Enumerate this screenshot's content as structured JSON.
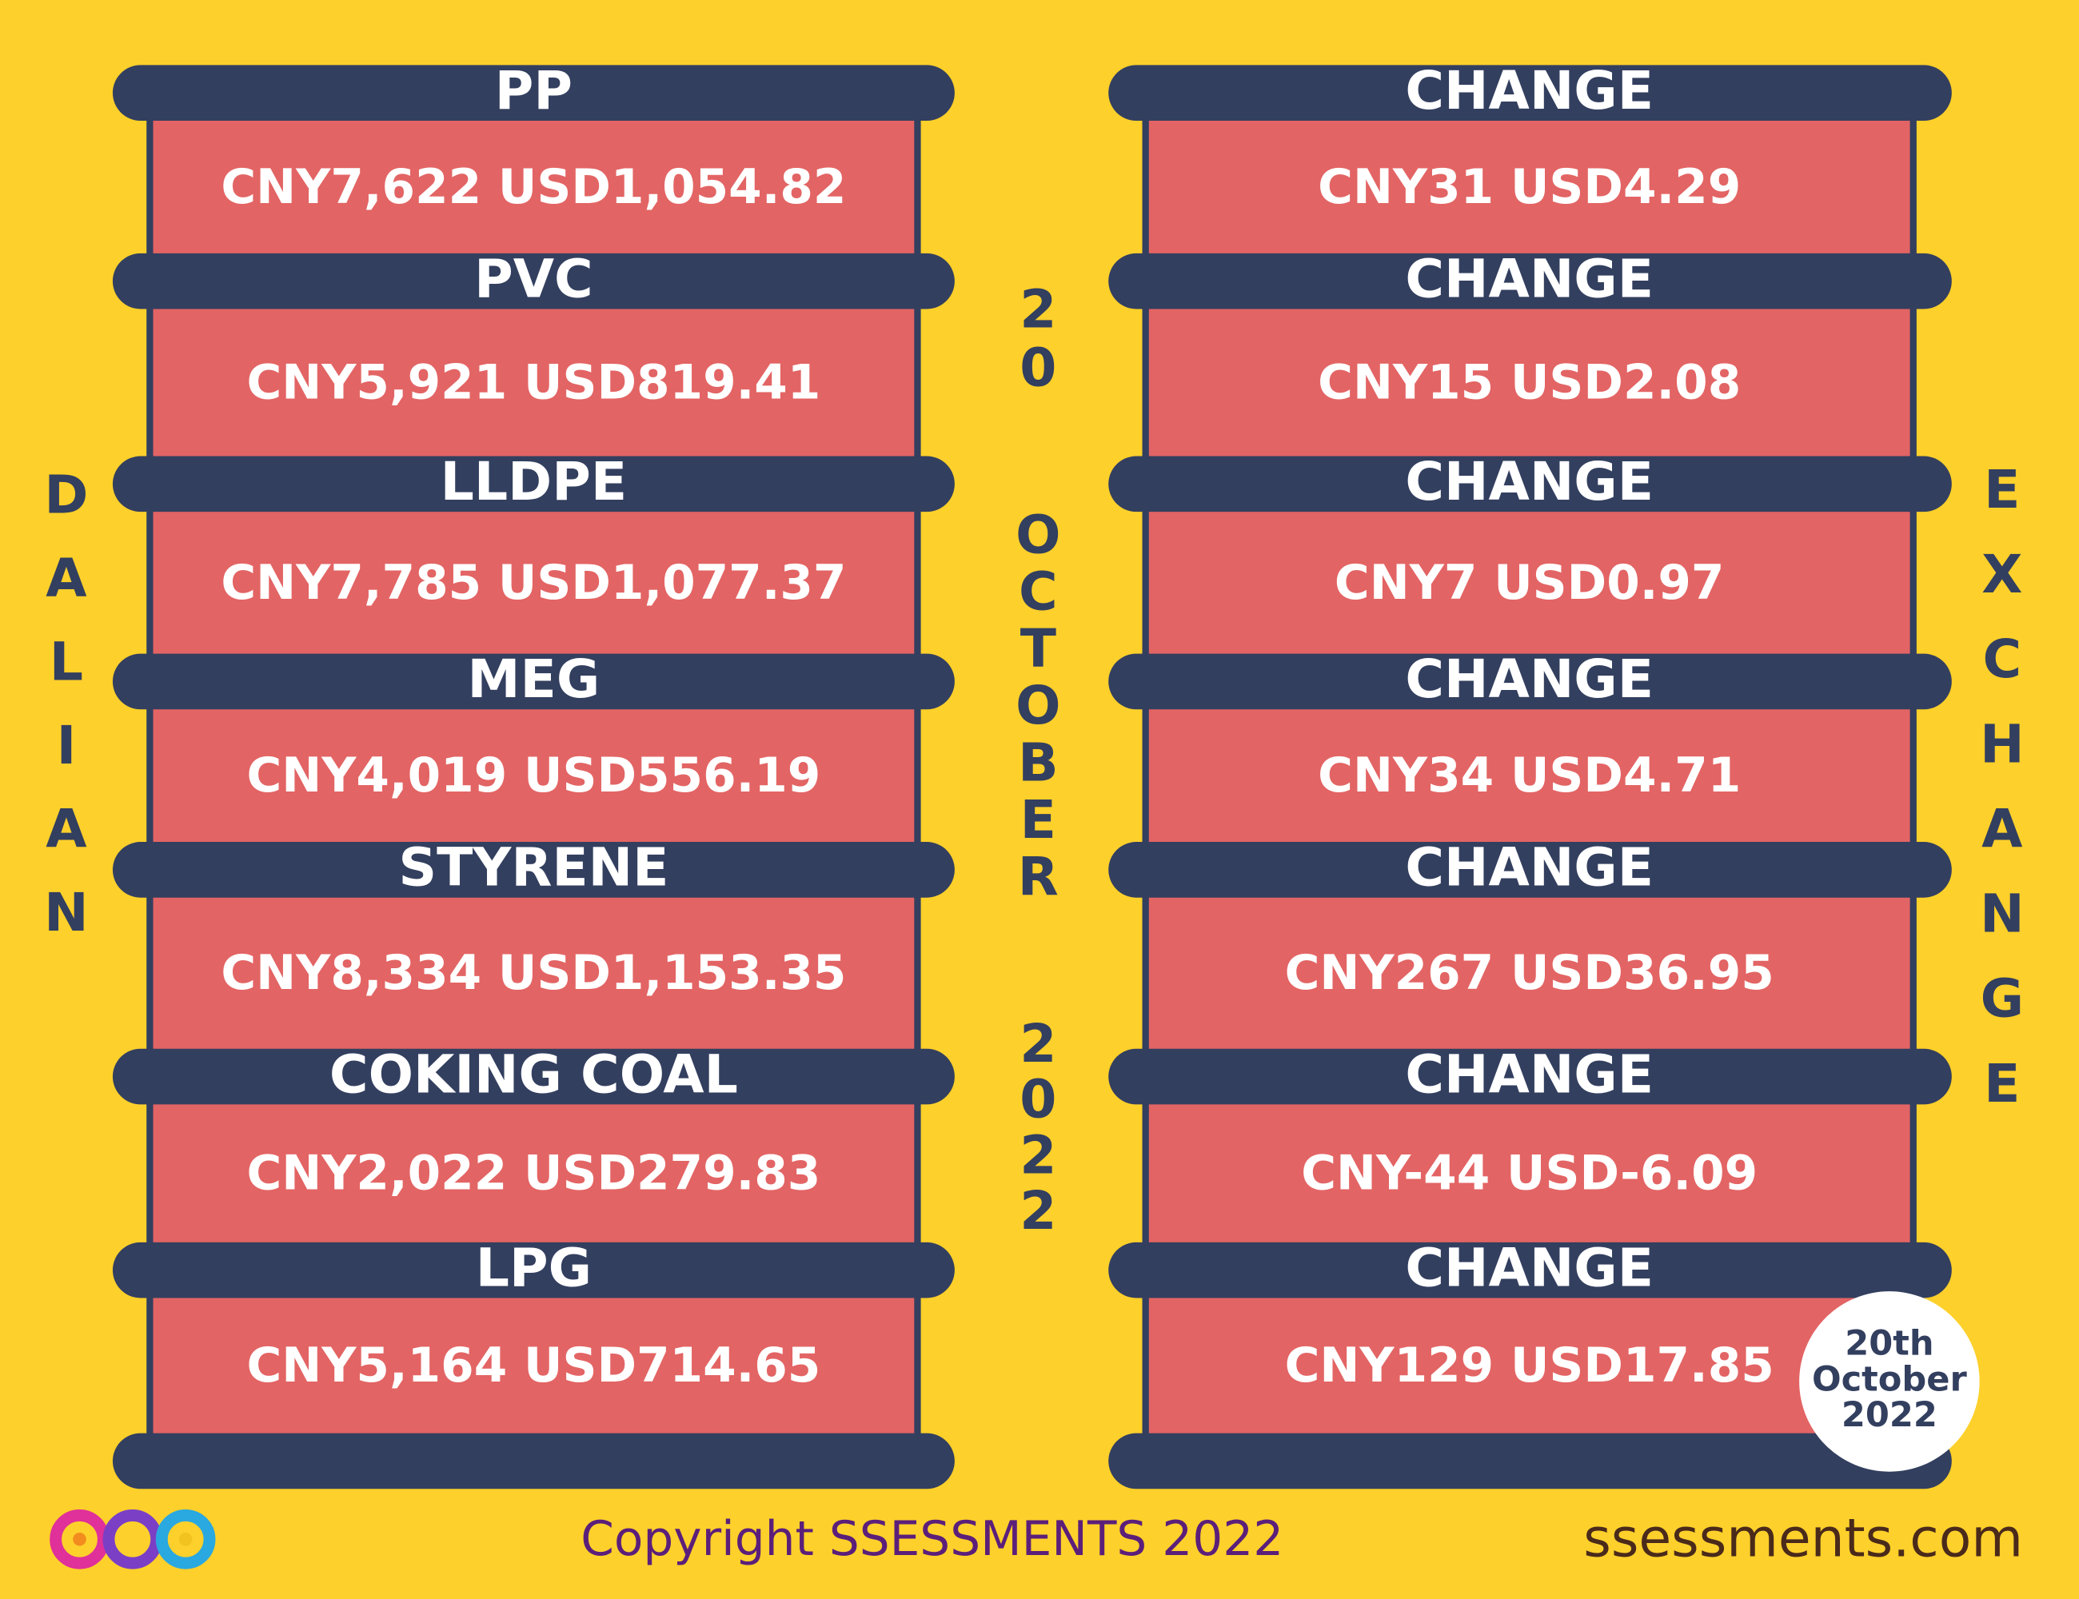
{
  "left_label": "DALIAN",
  "right_label": "EXCHANGE",
  "date_vertical": [
    "20",
    "OCTOBER",
    "2022"
  ],
  "items": [
    {
      "name": "PP",
      "price": "CNY7,622 USD1,054.82",
      "change_label": "CHANGE",
      "change": "CNY31 USD4.29"
    },
    {
      "name": "PVC",
      "price": "CNY5,921 USD819.41",
      "change_label": "CHANGE",
      "change": "CNY15 USD2.08"
    },
    {
      "name": "LLDPE",
      "price": "CNY7,785 USD1,077.37",
      "change_label": "CHANGE",
      "change": "CNY7 USD0.97"
    },
    {
      "name": "MEG",
      "price": "CNY4,019 USD556.19",
      "change_label": "CHANGE",
      "change": "CNY34 USD4.71"
    },
    {
      "name": "STYRENE",
      "price": "CNY8,334 USD1,153.35",
      "change_label": "CHANGE",
      "change": "CNY267 USD36.95"
    },
    {
      "name": "COKING COAL",
      "price": "CNY2,022 USD279.83",
      "change_label": "CHANGE",
      "change": "CNY-44 USD-6.09"
    },
    {
      "name": "LPG",
      "price": "CNY5,164 USD714.65",
      "change_label": "CHANGE",
      "change": "CNY129 USD17.85"
    }
  ],
  "badge": [
    "20th",
    "October",
    "2022"
  ],
  "footer": {
    "copyright": "Copyright SSESSMENTS 2022",
    "website": "ssessments.com"
  }
}
